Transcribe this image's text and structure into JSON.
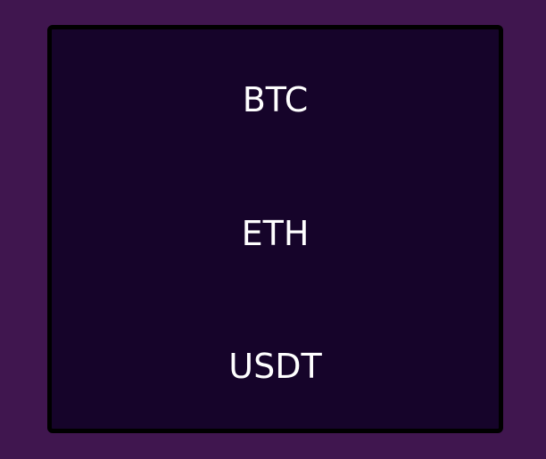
{
  "currency_menu": {
    "options": [
      {
        "label": "BTC"
      },
      {
        "label": "ETH"
      },
      {
        "label": "USDT"
      }
    ]
  },
  "colors": {
    "background": "#40164f",
    "panel": "#16042a",
    "panel_border": "#000000",
    "text": "#ffffff"
  }
}
